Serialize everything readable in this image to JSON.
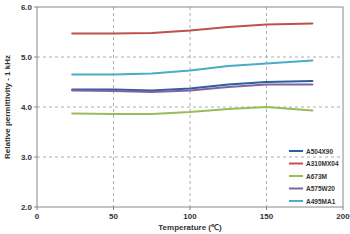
{
  "chart_data": {
    "type": "line",
    "x_label": "Temperature (℃)",
    "y_label": "Relative permittivity - 1 kHz",
    "x": [
      23,
      50,
      75,
      100,
      125,
      150,
      180
    ],
    "series": [
      {
        "name": "A504X90",
        "color": "#2e5f9e",
        "values": [
          4.35,
          4.35,
          4.33,
          4.37,
          4.45,
          4.5,
          4.52
        ]
      },
      {
        "name": "A310MX04",
        "color": "#c0504d",
        "values": [
          5.47,
          5.47,
          5.48,
          5.53,
          5.6,
          5.65,
          5.67
        ]
      },
      {
        "name": "A673M",
        "color": "#9bbb59",
        "values": [
          3.87,
          3.86,
          3.86,
          3.9,
          3.96,
          4.0,
          3.93
        ]
      },
      {
        "name": "A575W20",
        "color": "#8064a2",
        "values": [
          4.33,
          4.32,
          4.3,
          4.33,
          4.4,
          4.45,
          4.45
        ]
      },
      {
        "name": "A495MA1",
        "color": "#4bacc6",
        "values": [
          4.65,
          4.65,
          4.67,
          4.73,
          4.82,
          4.87,
          4.93
        ]
      }
    ],
    "xlim": [
      0,
      200
    ],
    "xticks": [
      0,
      50,
      100,
      150,
      200
    ],
    "ylim": [
      2.0,
      6.0
    ],
    "yticks": [
      {
        "value": 2,
        "label": "2.0"
      },
      {
        "value": 3,
        "label": "3.0"
      },
      {
        "value": 4,
        "label": "4.0"
      },
      {
        "value": 5,
        "label": "5.0"
      },
      {
        "value": 6,
        "label": "6.0"
      }
    ],
    "grid": true,
    "legend": "lower right"
  }
}
